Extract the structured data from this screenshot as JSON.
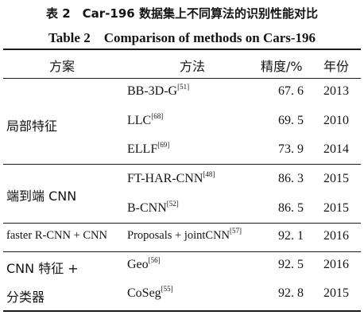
{
  "caption": {
    "cn": "表 2　Car-196 数据集上不同算法的识别性能对比",
    "en": "Table 2　Comparison of methods on Cars-196"
  },
  "headers": {
    "scheme": "方案",
    "method": "方法",
    "accuracy": "精度/%",
    "year": "年份"
  },
  "groups": [
    {
      "label": "局部特征"
    },
    {
      "label": "端到端 CNN"
    },
    {
      "label": "faster R-CNN + CNN"
    },
    {
      "label_line1": "CNN 特征 +",
      "label_line2": "分类器"
    }
  ],
  "rows": [
    {
      "method": "BB-3D-G",
      "ref": "[51]",
      "accuracy": "67. 6",
      "year": "2013"
    },
    {
      "method": "LLC",
      "ref": "[68]",
      "accuracy": "69. 5",
      "year": "2010"
    },
    {
      "method": "ELLF",
      "ref": "[69]",
      "accuracy": "73. 9",
      "year": "2014"
    },
    {
      "method": "FT-HAR-CNN",
      "ref": "[48]",
      "accuracy": "86. 3",
      "year": "2015"
    },
    {
      "method": "B-CNN",
      "ref": "[52]",
      "accuracy": "86. 5",
      "year": "2015"
    },
    {
      "method": "Proposals + jointCNN",
      "ref": "[57]",
      "accuracy": "92. 1",
      "year": "2016"
    },
    {
      "method": "Geo",
      "ref": "[56]",
      "accuracy": "92. 5",
      "year": "2016"
    },
    {
      "method": "CoSeg",
      "ref": "[55]",
      "accuracy": "92. 8",
      "year": "2015"
    }
  ]
}
